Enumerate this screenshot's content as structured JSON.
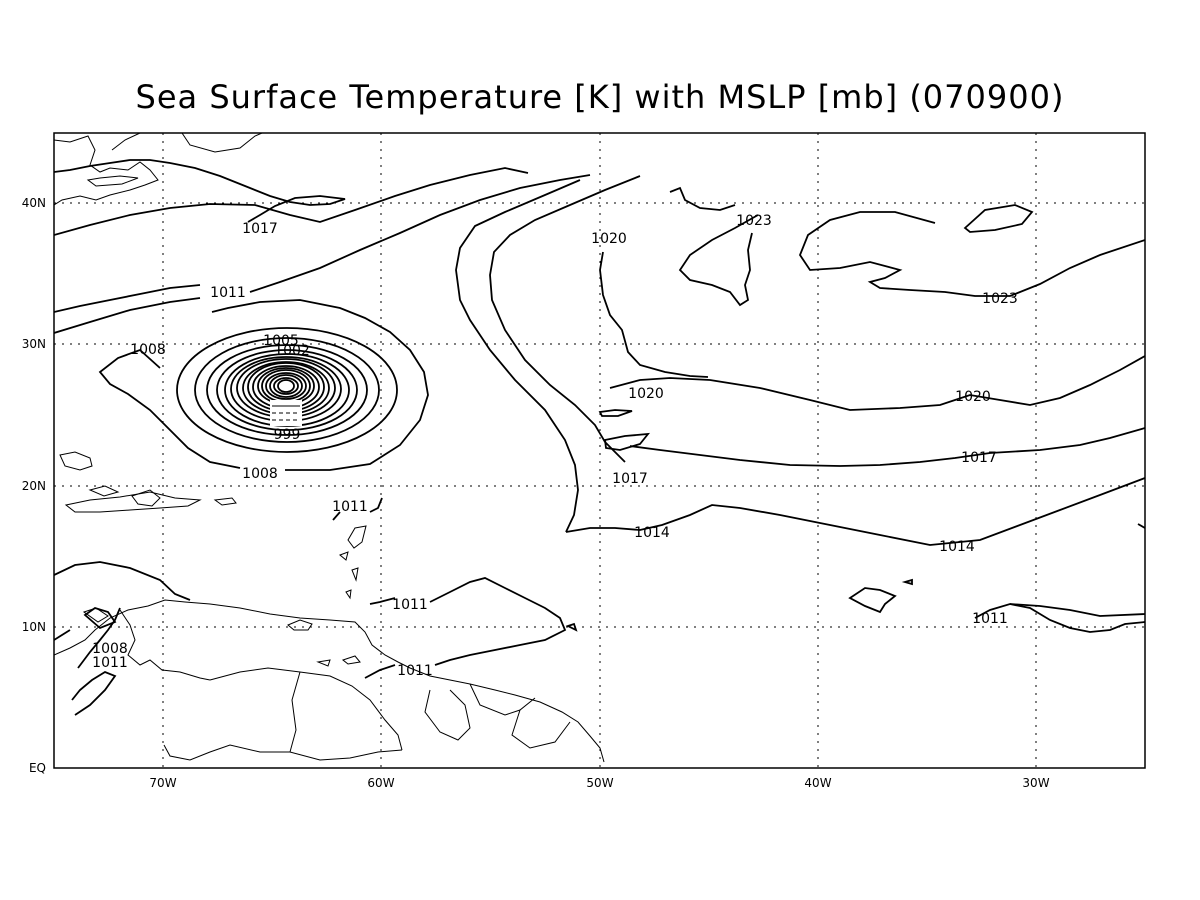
{
  "title": "Sea Surface Temperature [K] with MSLP [mb] (070900)",
  "axes": {
    "x_ticks": [
      "70W",
      "60W",
      "50W",
      "40W",
      "30W"
    ],
    "y_ticks": [
      "40N",
      "30N",
      "20N",
      "10N",
      "EQ"
    ]
  },
  "contour_labels": {
    "l1017_nw": "1017",
    "l1011_n": "1011",
    "l1008_w": "1008",
    "l1005": "1005",
    "l1002": "1002",
    "l999": "999",
    "l1008_s": "1008",
    "l1011_carib": "1011",
    "l1011_lesser": "1011",
    "l1011_sa": "1011",
    "l1008_ca": "1008",
    "l1011_ca": "1011",
    "l1020_mid": "1020",
    "l1023_n": "1023",
    "l1023_e": "1023",
    "l1020_c": "1020",
    "l1020_e": "1020",
    "l1017_c": "1017",
    "l1017_e": "1017",
    "l1014_c": "1014",
    "l1014_e": "1014",
    "l1011_e": "1011"
  }
}
